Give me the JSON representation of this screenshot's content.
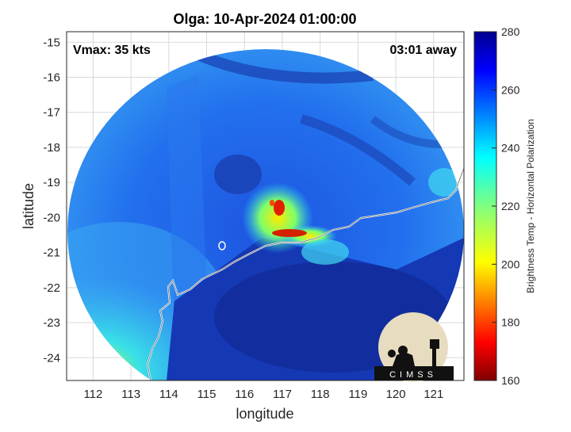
{
  "map": {
    "title": "Olga: 10-Apr-2024 01:00:00",
    "vmax_label": "Vmax: 35 kts",
    "away_label": "03:01 away",
    "xlabel": "longitude",
    "ylabel": "latitude",
    "x_ticks": [
      "112",
      "113",
      "114",
      "115",
      "116",
      "117",
      "118",
      "119",
      "120",
      "121"
    ],
    "y_ticks": [
      "-15",
      "-16",
      "-17",
      "-18",
      "-19",
      "-20",
      "-21",
      "-22",
      "-23",
      "-24"
    ],
    "xlim": [
      111.3,
      121.8
    ],
    "ylim": [
      -24.65,
      -14.7
    ],
    "grid": true
  },
  "colorbar": {
    "label": "Brightness Temp - Horizontal Polarization",
    "ticks": [
      "280",
      "260",
      "240",
      "220",
      "200",
      "180",
      "160"
    ],
    "range": [
      160,
      280
    ],
    "colormap": "jet"
  },
  "logo": {
    "text": "CIMSS"
  },
  "colors": {
    "background_swath": "#1f5ce8",
    "cold_core": "#122c9a",
    "coastline": "#ffffff"
  }
}
